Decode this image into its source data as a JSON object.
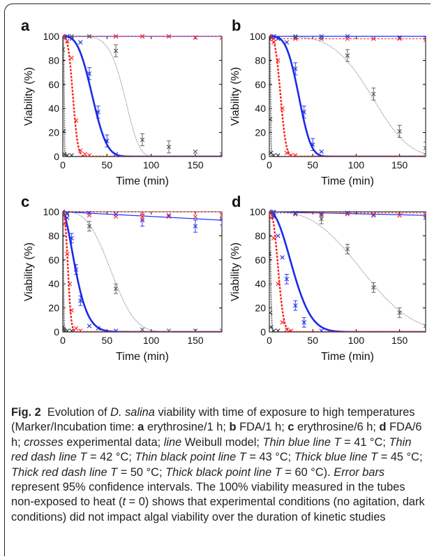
{
  "figure": {
    "panels": [
      {
        "label": "a",
        "curves": [
          {
            "series": "blue_thin",
            "type": "flat",
            "value": 100
          },
          {
            "series": "red_thin",
            "type": "flat",
            "value": 100
          },
          {
            "series": "black_thin",
            "type": "weibull",
            "t50": 70.0,
            "k": 6.0
          },
          {
            "series": "blue_thick",
            "type": "weibull",
            "t50": 33.5,
            "k": 3.0
          },
          {
            "series": "red_thick",
            "type": "weibull",
            "t50": 11.5,
            "k": 3.0
          },
          {
            "series": "black_thick",
            "type": "weibull",
            "t50": 1.5,
            "k": 4.0
          }
        ],
        "points": [
          {
            "series": "blue_thin",
            "x": [
              0,
              5,
              30,
              60,
              90,
              120,
              150,
              180
            ],
            "y": [
              100,
              100,
              100,
              100,
              100,
              100,
              99,
              99
            ]
          },
          {
            "series": "red_thin",
            "x": [
              0,
              5,
              30,
              60,
              90,
              120,
              150,
              180
            ],
            "y": [
              100,
              100,
              100,
              100,
              100,
              100,
              99,
              99
            ]
          },
          {
            "series": "black_thin",
            "x": [
              0,
              5,
              10,
              30,
              60,
              90,
              120,
              150,
              180
            ],
            "y": [
              99,
              100,
              100,
              100,
              88,
              14,
              8,
              4,
              2
            ],
            "err": [
              0,
              0,
              0,
              0,
              5,
              5,
              5,
              0,
              0
            ]
          },
          {
            "series": "blue_thick",
            "x": [
              0,
              5,
              10,
              20,
              30,
              40,
              50,
              60
            ],
            "y": [
              100,
              100,
              98,
              95,
              69,
              37,
              13,
              2
            ],
            "err": [
              0,
              0,
              0,
              0,
              5,
              5,
              5,
              0
            ]
          },
          {
            "series": "red_thick",
            "x": [
              0,
              5,
              10,
              15,
              20,
              25,
              30
            ],
            "y": [
              100,
              96,
              82,
              30,
              5,
              2,
              1
            ]
          },
          {
            "series": "black_thick",
            "x": [
              0,
              1,
              2,
              5,
              10
            ],
            "y": [
              89,
              21,
              2,
              1,
              1
            ]
          }
        ]
      },
      {
        "label": "b",
        "curves": [
          {
            "series": "blue_thin",
            "type": "flat",
            "value": 100
          },
          {
            "series": "red_thin",
            "type": "flat",
            "value": 98
          },
          {
            "series": "black_thin",
            "type": "weibull",
            "t50": 118.0,
            "k": 4.0
          },
          {
            "series": "blue_thick",
            "type": "weibull",
            "t50": 34.0,
            "k": 3.5
          },
          {
            "series": "red_thick",
            "type": "weibull",
            "t50": 13.0,
            "k": 3.0
          },
          {
            "series": "black_thick",
            "type": "weibull",
            "t50": 1.4,
            "k": 3.0
          }
        ],
        "points": [
          {
            "series": "blue_thin",
            "x": [
              0,
              5,
              30,
              60,
              90,
              120,
              150,
              180
            ],
            "y": [
              100,
              100,
              99,
              100,
              100,
              98,
              99,
              99
            ]
          },
          {
            "series": "red_thin",
            "x": [
              0,
              5,
              30,
              60,
              90,
              120,
              150,
              180
            ],
            "y": [
              100,
              98,
              98,
              98,
              98,
              98,
              98,
              97
            ]
          },
          {
            "series": "black_thin",
            "x": [
              0,
              5,
              30,
              60,
              90,
              120,
              150,
              180
            ],
            "y": [
              100,
              100,
              100,
              98,
              84,
              52,
              21,
              7
            ],
            "err": [
              0,
              0,
              0,
              0,
              5,
              5,
              5,
              5
            ]
          },
          {
            "series": "blue_thick",
            "x": [
              0,
              5,
              10,
              20,
              30,
              40,
              50,
              60
            ],
            "y": [
              100,
              100,
              98,
              95,
              73,
              37,
              10,
              4
            ],
            "err": [
              0,
              0,
              0,
              0,
              5,
              5,
              5,
              0
            ]
          },
          {
            "series": "red_thick",
            "x": [
              0,
              5,
              10,
              15,
              20,
              25,
              30
            ],
            "y": [
              100,
              95,
              80,
              40,
              3,
              1,
              1
            ]
          },
          {
            "series": "black_thick",
            "x": [
              0,
              1,
              2,
              5,
              10
            ],
            "y": [
              98,
              31,
              3,
              1,
              1
            ]
          }
        ]
      },
      {
        "label": "c",
        "curves": [
          {
            "series": "blue_thin",
            "type": "linear",
            "from": 100,
            "to": 93
          },
          {
            "series": "red_thin",
            "type": "flat",
            "value": 100
          },
          {
            "series": "black_thin",
            "type": "weibull",
            "t50": 55.0,
            "k": 3.0
          },
          {
            "series": "blue_thick",
            "type": "weibull",
            "t50": 15.0,
            "k": 1.6
          },
          {
            "series": "red_thick",
            "type": "weibull",
            "t50": 6.0,
            "k": 2.5
          },
          {
            "series": "black_thick",
            "type": "weibull",
            "t50": 0.8,
            "k": 2.0
          }
        ],
        "points": [
          {
            "series": "blue_thin",
            "x": [
              0,
              5,
              30,
              60,
              90,
              120,
              150,
              180
            ],
            "y": [
              100,
              99,
              99,
              98,
              93,
              97,
              88,
              94
            ],
            "err": [
              0,
              0,
              0,
              0,
              5,
              0,
              5,
              5
            ]
          },
          {
            "series": "red_thin",
            "x": [
              0,
              5,
              30,
              60,
              90,
              120,
              150,
              180
            ],
            "y": [
              100,
              98,
              97,
              96,
              96,
              96,
              96,
              97
            ],
            "err": [
              0,
              0,
              0,
              0,
              3,
              0,
              0,
              3
            ]
          },
          {
            "series": "black_thin",
            "x": [
              0,
              5,
              30,
              60,
              90,
              120,
              150,
              180
            ],
            "y": [
              100,
              98,
              88,
              36,
              2,
              1,
              1,
              1
            ],
            "err": [
              0,
              0,
              4,
              4,
              0,
              0,
              0,
              0
            ]
          },
          {
            "series": "blue_thick",
            "x": [
              0,
              5,
              10,
              15,
              20,
              30,
              40,
              60
            ],
            "y": [
              100,
              95,
              78,
              52,
              26,
              5,
              3,
              1
            ],
            "err": [
              0,
              0,
              4,
              4,
              4,
              0,
              0,
              0
            ]
          },
          {
            "series": "red_thick",
            "x": [
              0,
              2,
              5,
              8,
              10,
              15,
              20
            ],
            "y": [
              99,
              90,
              65,
              40,
              18,
              3,
              1
            ]
          },
          {
            "series": "black_thick",
            "x": [
              0,
              1,
              2,
              5,
              10
            ],
            "y": [
              4,
              2,
              1,
              1,
              1
            ]
          }
        ]
      },
      {
        "label": "d",
        "curves": [
          {
            "series": "blue_thin",
            "type": "linear",
            "from": 100,
            "to": 97
          },
          {
            "series": "red_thin",
            "type": "flat",
            "value": 99
          },
          {
            "series": "black_thin",
            "type": "weibull",
            "t50": 108.0,
            "k": 2.8
          },
          {
            "series": "blue_thick",
            "type": "weibull",
            "t50": 28.0,
            "k": 2.0
          },
          {
            "series": "red_thick",
            "type": "weibull",
            "t50": 10.5,
            "k": 2.5
          },
          {
            "series": "black_thick",
            "type": "weibull",
            "t50": 1.5,
            "k": 2.0
          }
        ],
        "points": [
          {
            "series": "blue_thin",
            "x": [
              0,
              5,
              30,
              60,
              90,
              120,
              150,
              180
            ],
            "y": [
              100,
              100,
              99,
              98,
              99,
              97,
              97,
              95
            ]
          },
          {
            "series": "red_thin",
            "x": [
              0,
              5,
              30,
              60,
              90,
              120,
              150,
              180
            ],
            "y": [
              100,
              99,
              98,
              97,
              98,
              98,
              97,
              97
            ]
          },
          {
            "series": "black_thin",
            "x": [
              0,
              5,
              30,
              60,
              90,
              120,
              150,
              180
            ],
            "y": [
              100,
              99,
              98,
              94,
              69,
              37,
              16,
              5
            ],
            "err": [
              0,
              0,
              0,
              4,
              4,
              4,
              4,
              0
            ]
          },
          {
            "series": "blue_thick",
            "x": [
              0,
              5,
              10,
              15,
              20,
              30,
              40,
              60
            ],
            "y": [
              100,
              96,
              80,
              62,
              44,
              22,
              8,
              1
            ],
            "err": [
              0,
              0,
              0,
              0,
              4,
              4,
              4,
              0
            ]
          },
          {
            "series": "red_thick",
            "x": [
              0,
              2,
              5,
              10,
              15,
              20,
              25
            ],
            "y": [
              99,
              95,
              78,
              40,
              8,
              2,
              1
            ]
          },
          {
            "series": "black_thick",
            "x": [
              0,
              1,
              2,
              5,
              10
            ],
            "y": [
              65,
              16,
              4,
              1,
              1
            ]
          }
        ]
      }
    ],
    "axes": {
      "xlabel": "Time (min)",
      "ylabel": "Viability (%)",
      "xlim": [
        0,
        180
      ],
      "ylim": [
        0,
        100
      ],
      "xticks": [
        0,
        50,
        100,
        150
      ],
      "yticks": [
        0,
        20,
        40,
        60,
        80,
        100
      ]
    },
    "series_styles": {
      "blue_thin": {
        "color": "#1f2dff",
        "width": 1.2,
        "dash": ""
      },
      "red_thin": {
        "color": "#ff2a2a",
        "width": 1.0,
        "dash": "3,2"
      },
      "black_thin": {
        "color": "#555555",
        "width": 1.0,
        "dash": "1,1.5"
      },
      "blue_thick": {
        "color": "#1a2be6",
        "width": 2.6,
        "dash": ""
      },
      "red_thick": {
        "color": "#ff1a1a",
        "width": 2.4,
        "dash": "3,2"
      },
      "black_thick": {
        "color": "#333333",
        "width": 2.0,
        "dash": "1,1.5"
      }
    }
  },
  "caption": {
    "figure_number": "Fig. 2",
    "t1": "Evolution of ",
    "t2": "D. salina",
    "t3": " viability with time of exposure to high temperatures (Marker/Incubation time: ",
    "a_label": "a",
    "a_text": " erythrosine/1 h; ",
    "b_label": "b",
    "b_text": " FDA/1 h; ",
    "c_label": "c",
    "c_text": " erythrosine/6 h; ",
    "d_label": "d",
    "d_text": " FDA/6 h; ",
    "crosses_label": "crosses",
    "crosses_text": " experimental data; ",
    "line_label": "line",
    "line_text": " Weibull model; ",
    "s1": "Thin blue line T",
    "s1v": " = 41 °C; ",
    "s2": "Thin red dash line T",
    "s2v": " = 42 °C; ",
    "s3": "Thin black point line T",
    "s3v": " = 43 °C; ",
    "s4": "Thick blue line T",
    "s4v": " = 45 °C; ",
    "s5": "Thick red dash line T",
    "s5v": " = 50 °C; ",
    "s6": "Thick black point line T",
    "s6v": " = 60 °C). ",
    "err_label": "Error bars",
    "err_text": " represent 95% confidence intervals. The 100% viability measured in the tubes non-exposed to heat (",
    "t_var": "t",
    "t_val": " = 0) shows that experimental conditions (no agitation, dark conditions) did not impact algal viability over the duration of kinetic studies"
  }
}
